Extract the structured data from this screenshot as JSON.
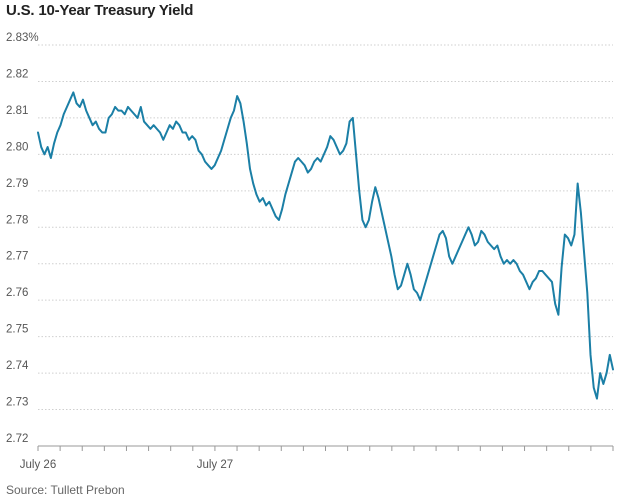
{
  "title": "U.S. 10-Year Treasury Yield",
  "source": "Source: Tullett Prebon",
  "colors": {
    "line": "#1b7fa6",
    "grid": "#cfcfcf",
    "axis": "#999999",
    "text": "#555555"
  },
  "chart_data": {
    "type": "line",
    "title": "U.S. 10-Year Treasury Yield",
    "xlabel": "",
    "ylabel": "",
    "unit": "%",
    "ylim": [
      2.72,
      2.83
    ],
    "y_ticks": [
      "2.83%",
      "2.82",
      "2.81",
      "2.80",
      "2.79",
      "2.78",
      "2.77",
      "2.76",
      "2.75",
      "2.74",
      "2.73",
      "2.72"
    ],
    "y_tick_values": [
      2.83,
      2.82,
      2.81,
      2.8,
      2.79,
      2.78,
      2.77,
      2.76,
      2.75,
      2.74,
      2.73,
      2.72
    ],
    "x_tick_labels": [
      "July 26",
      "July 27"
    ],
    "x_tick_label_positions": [
      0,
      8
    ],
    "x_ticks_count": 27,
    "grid": "horizontal",
    "series": [
      {
        "values": [
          2.806,
          2.802,
          2.8,
          2.802,
          2.799,
          2.803,
          2.806,
          2.808,
          2.811,
          2.813,
          2.815,
          2.817,
          2.814,
          2.813,
          2.815,
          2.812,
          2.81,
          2.808,
          2.809,
          2.807,
          2.806,
          2.806,
          2.81,
          2.811,
          2.813,
          2.812,
          2.812,
          2.811,
          2.813,
          2.812,
          2.811,
          2.81,
          2.813,
          2.809,
          2.808,
          2.807,
          2.808,
          2.807,
          2.806,
          2.804,
          2.806,
          2.808,
          2.807,
          2.809,
          2.808,
          2.806,
          2.806,
          2.804,
          2.805,
          2.804,
          2.801,
          2.8,
          2.798,
          2.797,
          2.796,
          2.797,
          2.799,
          2.801,
          2.804,
          2.807,
          2.81,
          2.812,
          2.816,
          2.814,
          2.809,
          2.803,
          2.796,
          2.792,
          2.789,
          2.787,
          2.788,
          2.786,
          2.787,
          2.785,
          2.783,
          2.782,
          2.785,
          2.789,
          2.792,
          2.795,
          2.798,
          2.799,
          2.798,
          2.797,
          2.795,
          2.796,
          2.798,
          2.799,
          2.798,
          2.8,
          2.802,
          2.805,
          2.804,
          2.802,
          2.8,
          2.801,
          2.803,
          2.809,
          2.81,
          2.8,
          2.79,
          2.782,
          2.78,
          2.782,
          2.787,
          2.791,
          2.788,
          2.784,
          2.78,
          2.776,
          2.772,
          2.767,
          2.763,
          2.764,
          2.767,
          2.77,
          2.767,
          2.763,
          2.762,
          2.76,
          2.763,
          2.766,
          2.769,
          2.772,
          2.775,
          2.778,
          2.779,
          2.777,
          2.772,
          2.77,
          2.772,
          2.774,
          2.776,
          2.778,
          2.78,
          2.778,
          2.775,
          2.776,
          2.779,
          2.778,
          2.776,
          2.775,
          2.774,
          2.775,
          2.772,
          2.77,
          2.771,
          2.77,
          2.771,
          2.77,
          2.768,
          2.767,
          2.765,
          2.763,
          2.765,
          2.766,
          2.768,
          2.768,
          2.767,
          2.766,
          2.765,
          2.759,
          2.756,
          2.769,
          2.778,
          2.777,
          2.775,
          2.778,
          2.792,
          2.784,
          2.773,
          2.762,
          2.745,
          2.736,
          2.733,
          2.74,
          2.737,
          2.74,
          2.745,
          2.741
        ]
      }
    ]
  }
}
